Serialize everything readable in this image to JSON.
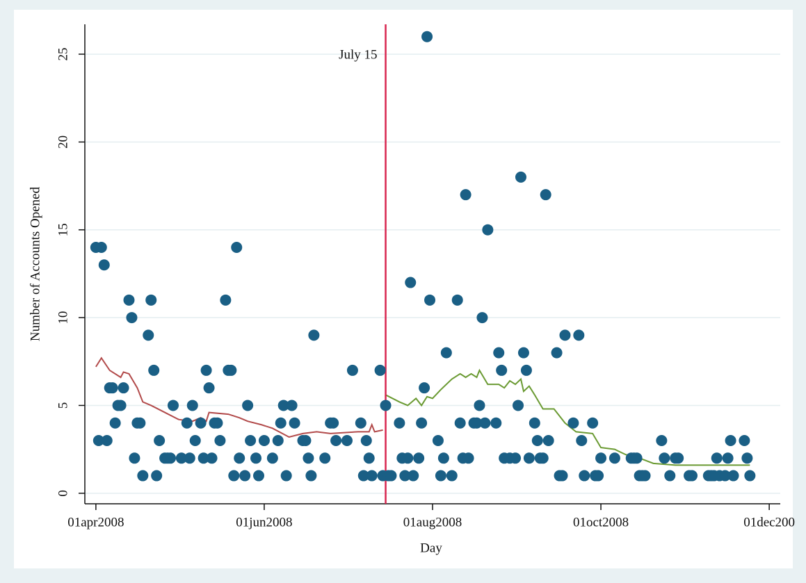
{
  "chart_data": {
    "type": "scatter",
    "x_label": "Day",
    "y_label": "Number of Accounts Opened",
    "xlim": [
      "2008-03-28",
      "2008-12-05"
    ],
    "xticks": [
      {
        "value": "2008-04-01",
        "label": "01apr2008"
      },
      {
        "value": "2008-06-01",
        "label": "01jun2008"
      },
      {
        "value": "2008-08-01",
        "label": "01aug2008"
      },
      {
        "value": "2008-10-01",
        "label": "01oct2008"
      },
      {
        "value": "2008-12-01",
        "label": "01dec200"
      }
    ],
    "ylim": [
      -0.6,
      26.7
    ],
    "yticks": [
      0,
      5,
      10,
      15,
      20,
      25
    ],
    "grid": true,
    "vline": {
      "x": "2008-07-15",
      "label": "July 15",
      "color": "#d8254f"
    },
    "series": [
      {
        "type": "scatter",
        "color": "#1a5f85",
        "x": [
          "2008-04-01",
          "2008-04-02",
          "2008-04-03",
          "2008-04-04",
          "2008-04-05",
          "2008-04-06",
          "2008-04-07",
          "2008-04-08",
          "2008-04-09",
          "2008-04-10",
          "2008-04-11",
          "2008-04-13",
          "2008-04-14",
          "2008-04-15",
          "2008-04-16",
          "2008-04-17",
          "2008-04-18",
          "2008-04-20",
          "2008-04-21",
          "2008-04-22",
          "2008-04-23",
          "2008-04-24",
          "2008-04-26",
          "2008-04-27",
          "2008-04-28",
          "2008-04-29",
          "2008-05-02",
          "2008-05-04",
          "2008-05-05",
          "2008-05-06",
          "2008-05-07",
          "2008-05-09",
          "2008-05-10",
          "2008-05-11",
          "2008-05-12",
          "2008-05-13",
          "2008-05-14",
          "2008-05-15",
          "2008-05-16",
          "2008-05-18",
          "2008-05-19",
          "2008-05-20",
          "2008-05-21",
          "2008-05-22",
          "2008-05-23",
          "2008-05-25",
          "2008-05-26",
          "2008-05-27",
          "2008-05-29",
          "2008-05-30",
          "2008-06-01",
          "2008-06-04",
          "2008-06-06",
          "2008-06-07",
          "2008-06-08",
          "2008-06-09",
          "2008-06-11",
          "2008-06-12",
          "2008-06-15",
          "2008-06-16",
          "2008-06-17",
          "2008-06-18",
          "2008-06-19",
          "2008-06-23",
          "2008-06-25",
          "2008-06-26",
          "2008-06-27",
          "2008-07-01",
          "2008-07-03",
          "2008-07-06",
          "2008-07-07",
          "2008-07-08",
          "2008-07-09",
          "2008-07-10",
          "2008-07-13",
          "2008-07-14",
          "2008-07-15",
          "2008-07-16",
          "2008-07-17",
          "2008-07-20",
          "2008-07-21",
          "2008-07-22",
          "2008-07-23",
          "2008-07-24",
          "2008-07-25",
          "2008-07-27",
          "2008-07-28",
          "2008-07-29",
          "2008-07-30",
          "2008-07-31",
          "2008-08-03",
          "2008-08-04",
          "2008-08-05",
          "2008-08-06",
          "2008-08-08",
          "2008-08-10",
          "2008-08-11",
          "2008-08-12",
          "2008-08-13",
          "2008-08-14",
          "2008-08-16",
          "2008-08-17",
          "2008-08-18",
          "2008-08-19",
          "2008-08-20",
          "2008-08-21",
          "2008-08-24",
          "2008-08-25",
          "2008-08-26",
          "2008-08-27",
          "2008-08-29",
          "2008-08-31",
          "2008-09-01",
          "2008-09-02",
          "2008-09-03",
          "2008-09-04",
          "2008-09-05",
          "2008-09-07",
          "2008-09-08",
          "2008-09-09",
          "2008-09-10",
          "2008-09-11",
          "2008-09-12",
          "2008-09-15",
          "2008-09-16",
          "2008-09-17",
          "2008-09-18",
          "2008-09-21",
          "2008-09-23",
          "2008-09-24",
          "2008-09-25",
          "2008-09-28",
          "2008-09-29",
          "2008-09-30",
          "2008-10-01",
          "2008-10-06",
          "2008-10-12",
          "2008-10-13",
          "2008-10-14",
          "2008-10-15",
          "2008-10-16",
          "2008-10-17",
          "2008-10-23",
          "2008-10-24",
          "2008-10-26",
          "2008-10-28",
          "2008-10-29",
          "2008-11-02",
          "2008-11-03",
          "2008-11-09",
          "2008-11-10",
          "2008-11-11",
          "2008-11-12",
          "2008-11-13",
          "2008-11-15",
          "2008-11-16",
          "2008-11-17",
          "2008-11-18",
          "2008-11-22",
          "2008-11-23",
          "2008-11-24"
        ],
        "values": [
          14,
          3,
          14,
          13,
          3,
          6,
          6,
          4,
          5,
          5,
          6,
          11,
          10,
          2,
          4,
          4,
          1,
          9,
          11,
          7,
          1,
          3,
          2,
          2,
          2,
          5,
          2,
          4,
          2,
          5,
          3,
          4,
          2,
          7,
          6,
          2,
          4,
          4,
          3,
          11,
          7,
          7,
          1,
          14,
          2,
          1,
          5,
          3,
          2,
          1,
          3,
          2,
          3,
          4,
          5,
          1,
          5,
          4,
          3,
          3,
          2,
          1,
          9,
          2,
          4,
          4,
          3,
          3,
          7,
          4,
          1,
          3,
          2,
          1,
          7,
          1,
          5,
          1,
          1,
          4,
          2,
          1,
          2,
          12,
          1,
          2,
          4,
          6,
          26,
          11,
          3,
          1,
          2,
          8,
          1,
          11,
          4,
          2,
          17,
          2,
          4,
          4,
          5,
          10,
          4,
          15,
          4,
          8,
          7,
          2,
          2,
          2,
          5,
          18,
          8,
          7,
          2,
          4,
          3,
          2,
          2,
          17,
          3,
          8,
          1,
          1,
          9,
          4,
          9,
          3,
          1,
          4,
          1,
          1,
          2,
          2,
          2,
          2,
          2,
          1,
          1,
          1,
          3,
          2,
          1,
          2,
          2,
          1,
          1,
          1,
          1,
          1,
          2,
          1,
          1,
          2,
          3,
          1,
          3,
          2,
          1
        ]
      },
      {
        "type": "line",
        "color": "#b24a4a",
        "x": [
          "2008-04-01",
          "2008-04-03",
          "2008-04-06",
          "2008-04-10",
          "2008-04-11",
          "2008-04-13",
          "2008-04-16",
          "2008-04-18",
          "2008-04-21",
          "2008-04-26",
          "2008-05-01",
          "2008-05-06",
          "2008-05-09",
          "2008-05-11",
          "2008-05-12",
          "2008-05-19",
          "2008-05-23",
          "2008-05-26",
          "2008-05-31",
          "2008-06-04",
          "2008-06-10",
          "2008-06-15",
          "2008-06-20",
          "2008-06-25",
          "2008-07-05",
          "2008-07-09",
          "2008-07-10",
          "2008-07-11",
          "2008-07-14"
        ],
        "values": [
          7.2,
          7.7,
          7.0,
          6.6,
          6.9,
          6.8,
          6.0,
          5.2,
          5.0,
          4.6,
          4.2,
          4.1,
          4.3,
          4.1,
          4.6,
          4.5,
          4.3,
          4.1,
          3.9,
          3.7,
          3.2,
          3.4,
          3.5,
          3.4,
          3.5,
          3.5,
          3.9,
          3.5,
          3.6
        ]
      },
      {
        "type": "line",
        "color": "#6a9a32",
        "x": [
          "2008-07-15",
          "2008-07-20",
          "2008-07-23",
          "2008-07-26",
          "2008-07-28",
          "2008-07-30",
          "2008-08-01",
          "2008-08-04",
          "2008-08-08",
          "2008-08-11",
          "2008-08-13",
          "2008-08-15",
          "2008-08-17",
          "2008-08-18",
          "2008-08-21",
          "2008-08-25",
          "2008-08-27",
          "2008-08-29",
          "2008-08-31",
          "2008-09-02",
          "2008-09-03",
          "2008-09-05",
          "2008-09-07",
          "2008-09-10",
          "2008-09-14",
          "2008-09-18",
          "2008-09-22",
          "2008-09-28",
          "2008-10-01",
          "2008-10-06",
          "2008-10-10",
          "2008-10-15",
          "2008-10-20",
          "2008-10-28",
          "2008-11-07",
          "2008-11-17",
          "2008-11-24"
        ],
        "values": [
          5.6,
          5.2,
          5.0,
          5.4,
          5.0,
          5.5,
          5.4,
          5.9,
          6.5,
          6.8,
          6.6,
          6.8,
          6.6,
          7.0,
          6.2,
          6.2,
          6.0,
          6.4,
          6.2,
          6.5,
          5.8,
          6.1,
          5.6,
          4.8,
          4.8,
          4.0,
          3.5,
          3.4,
          2.6,
          2.5,
          2.2,
          2.0,
          1.7,
          1.6,
          1.6,
          1.6,
          1.6
        ]
      }
    ]
  }
}
